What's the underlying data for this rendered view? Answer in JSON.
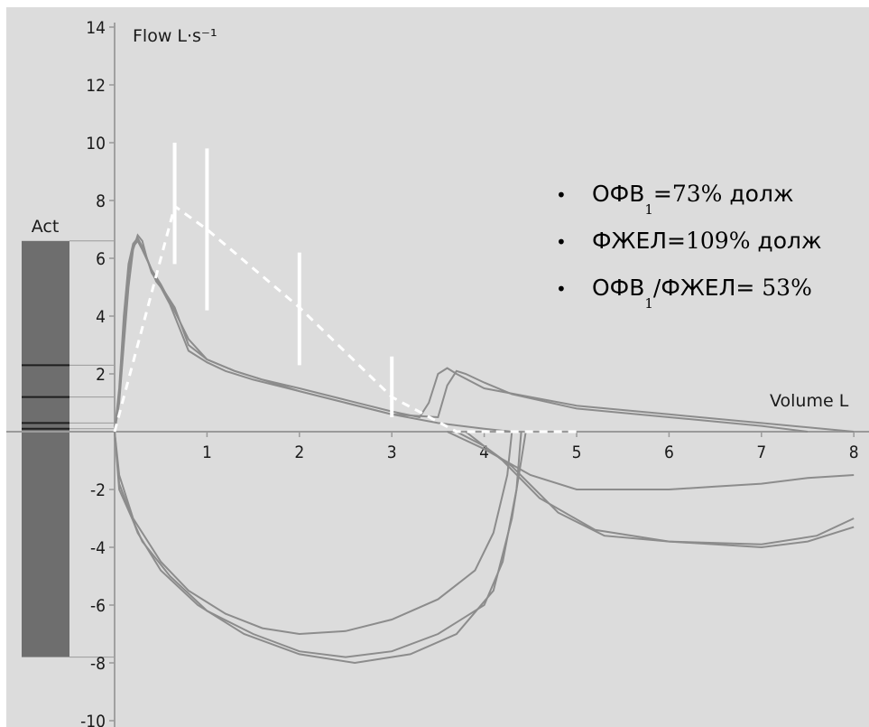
{
  "chart_data": {
    "type": "line",
    "title": "",
    "xlabel": "Volume L",
    "ylabel": "Flow L·s⁻¹",
    "xlim": [
      0,
      8
    ],
    "ylim": [
      -10,
      14
    ],
    "x_ticks": [
      "1",
      "2",
      "3",
      "4",
      "5",
      "6",
      "7",
      "8"
    ],
    "y_ticks": [
      "14",
      "12",
      "10",
      "8",
      "6",
      "4",
      "2",
      "-2",
      "-4",
      "-6",
      "-8",
      "-10"
    ],
    "bar_label": "Act",
    "bar_range": [
      -7.8,
      6.6
    ],
    "bar_lines": [
      2.3,
      1.2,
      0.3,
      0.1
    ],
    "colors": {
      "background": "#dcdcdc",
      "bar": "#6e6e6e",
      "curve": "#8c8c8c",
      "predicted": "#ffffff",
      "axis": "#9a9a9a"
    },
    "series": [
      {
        "values": [
          [
            0,
            0
          ],
          [
            0.05,
            1.5
          ],
          [
            0.1,
            4
          ],
          [
            0.15,
            5.8
          ],
          [
            0.2,
            6.5
          ],
          [
            0.25,
            6.7
          ],
          [
            0.3,
            6.4
          ],
          [
            0.35,
            6
          ],
          [
            0.4,
            5.5
          ],
          [
            0.5,
            5
          ],
          [
            0.6,
            4.4
          ],
          [
            0.7,
            3.6
          ],
          [
            0.8,
            2.8
          ],
          [
            1,
            2.4
          ],
          [
            1.2,
            2.1
          ],
          [
            1.5,
            1.8
          ],
          [
            2,
            1.4
          ],
          [
            2.5,
            1
          ],
          [
            3,
            0.6
          ],
          [
            3.5,
            0.3
          ],
          [
            4,
            0.1
          ],
          [
            4.3,
            0
          ]
        ]
      },
      {
        "values": [
          [
            0,
            0
          ],
          [
            0.05,
            1
          ],
          [
            0.1,
            3
          ],
          [
            0.15,
            5
          ],
          [
            0.2,
            6.3
          ],
          [
            0.25,
            6.8
          ],
          [
            0.3,
            6.6
          ],
          [
            0.35,
            6
          ],
          [
            0.45,
            5.2
          ],
          [
            0.55,
            4.8
          ],
          [
            0.65,
            4.3
          ],
          [
            0.8,
            3
          ],
          [
            1,
            2.5
          ],
          [
            1.3,
            2.1
          ],
          [
            1.6,
            1.8
          ],
          [
            2,
            1.5
          ],
          [
            2.5,
            1.1
          ],
          [
            3,
            0.7
          ],
          [
            3.3,
            0.5
          ],
          [
            3.4,
            1
          ],
          [
            3.5,
            2
          ],
          [
            3.6,
            2.2
          ],
          [
            3.7,
            2
          ],
          [
            4,
            1.5
          ],
          [
            4.5,
            1.2
          ],
          [
            5,
            0.9
          ],
          [
            6,
            0.6
          ],
          [
            7,
            0.3
          ],
          [
            8,
            0
          ]
        ]
      },
      {
        "values": [
          [
            0,
            0
          ],
          [
            0.05,
            1.2
          ],
          [
            0.1,
            3.5
          ],
          [
            0.15,
            5.5
          ],
          [
            0.2,
            6.4
          ],
          [
            0.25,
            6.6
          ],
          [
            0.3,
            6.3
          ],
          [
            0.4,
            5.6
          ],
          [
            0.5,
            5.1
          ],
          [
            0.6,
            4.5
          ],
          [
            0.8,
            3.2
          ],
          [
            1,
            2.5
          ],
          [
            1.3,
            2.1
          ],
          [
            1.6,
            1.8
          ],
          [
            2,
            1.4
          ],
          [
            2.5,
            1
          ],
          [
            3,
            0.6
          ],
          [
            3.5,
            0.5
          ],
          [
            3.6,
            1.6
          ],
          [
            3.7,
            2.1
          ],
          [
            3.8,
            2
          ],
          [
            4,
            1.7
          ],
          [
            4.3,
            1.3
          ],
          [
            5,
            0.8
          ],
          [
            6,
            0.5
          ],
          [
            7,
            0.2
          ],
          [
            7.5,
            0
          ]
        ]
      },
      {
        "values": [
          [
            0,
            0
          ],
          [
            0.05,
            -1.5
          ],
          [
            0.2,
            -3
          ],
          [
            0.5,
            -4.5
          ],
          [
            0.8,
            -5.5
          ],
          [
            1.2,
            -6.3
          ],
          [
            1.6,
            -6.8
          ],
          [
            2,
            -7
          ],
          [
            2.5,
            -6.9
          ],
          [
            3,
            -6.5
          ],
          [
            3.5,
            -5.8
          ],
          [
            3.9,
            -4.8
          ],
          [
            4.1,
            -3.5
          ],
          [
            4.25,
            -1.5
          ],
          [
            4.3,
            0
          ]
        ]
      },
      {
        "values": [
          [
            0,
            0
          ],
          [
            0.05,
            -2
          ],
          [
            0.3,
            -3.8
          ],
          [
            0.6,
            -5
          ],
          [
            1,
            -6.2
          ],
          [
            1.5,
            -7
          ],
          [
            2,
            -7.6
          ],
          [
            2.5,
            -7.8
          ],
          [
            3,
            -7.6
          ],
          [
            3.5,
            -7
          ],
          [
            4,
            -6
          ],
          [
            4.2,
            -4.5
          ],
          [
            4.35,
            -2
          ],
          [
            4.4,
            0
          ]
        ]
      },
      {
        "values": [
          [
            0,
            0
          ],
          [
            0.05,
            -1.8
          ],
          [
            0.25,
            -3.5
          ],
          [
            0.5,
            -4.8
          ],
          [
            0.9,
            -6
          ],
          [
            1.4,
            -7
          ],
          [
            2,
            -7.7
          ],
          [
            2.6,
            -8
          ],
          [
            3.2,
            -7.7
          ],
          [
            3.7,
            -7
          ],
          [
            4.1,
            -5.5
          ],
          [
            4.3,
            -3
          ],
          [
            4.45,
            0
          ]
        ]
      },
      {
        "values": [
          [
            3.6,
            0
          ],
          [
            4,
            -0.6
          ],
          [
            4.5,
            -1.5
          ],
          [
            5,
            -2
          ],
          [
            5.5,
            -2
          ],
          [
            6,
            -2
          ],
          [
            6.5,
            -1.9
          ],
          [
            7,
            -1.8
          ],
          [
            7.5,
            -1.6
          ],
          [
            8,
            -1.5
          ]
        ]
      },
      {
        "values": [
          [
            3.7,
            0
          ],
          [
            4,
            -0.5
          ],
          [
            4.3,
            -1.2
          ],
          [
            4.8,
            -2.8
          ],
          [
            5.3,
            -3.6
          ],
          [
            6,
            -3.8
          ],
          [
            6.5,
            -3.9
          ],
          [
            7,
            -4
          ],
          [
            7.5,
            -3.8
          ],
          [
            8,
            -3.3
          ]
        ]
      },
      {
        "values": [
          [
            3.8,
            0
          ],
          [
            4.2,
            -1
          ],
          [
            4.6,
            -2.3
          ],
          [
            5.2,
            -3.4
          ],
          [
            6,
            -3.8
          ],
          [
            7,
            -3.9
          ],
          [
            7.6,
            -3.6
          ],
          [
            8,
            -3
          ]
        ]
      },
      {
        "values": [
          [
            0,
            0
          ],
          [
            0.65,
            7.8
          ],
          [
            1,
            7
          ],
          [
            2,
            4.3
          ],
          [
            3,
            1.2
          ],
          [
            3.7,
            0
          ],
          [
            5,
            0
          ]
        ]
      }
    ],
    "predicted_bars": [
      {
        "x": 0.65,
        "y": [
          5.8,
          10
        ]
      },
      {
        "x": 1,
        "y": [
          4.2,
          9.8
        ]
      },
      {
        "x": 2,
        "y": [
          2.3,
          6.2
        ]
      },
      {
        "x": 3,
        "y": [
          0.5,
          2.6
        ]
      }
    ],
    "annotations": [
      {
        "prefix": "ОФВ",
        "sub": "1",
        "sep": "=",
        "num": "73%",
        "suffix": " долж"
      },
      {
        "prefix": "ФЖЕЛ=",
        "sub": "",
        "sep": "",
        "num": "109%",
        "suffix": " долж"
      },
      {
        "prefix": "ОФВ",
        "sub": "1",
        "sep": "/ФЖЕЛ= ",
        "num": "53%",
        "suffix": ""
      }
    ]
  }
}
